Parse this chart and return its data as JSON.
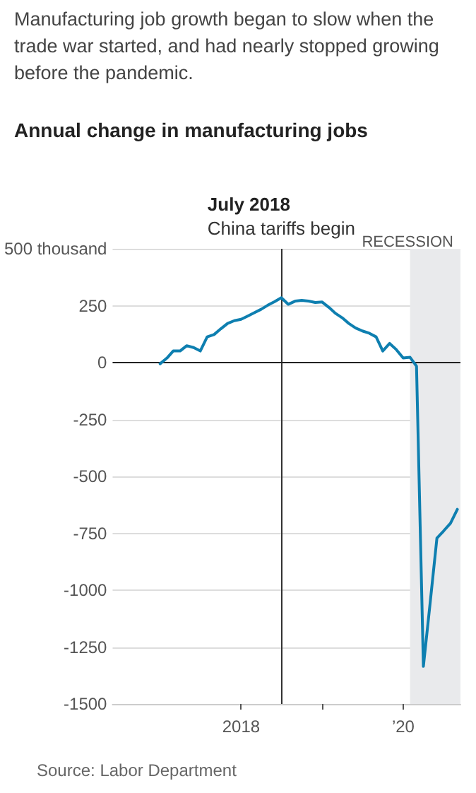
{
  "chart_data": {
    "type": "line",
    "subtitle": "Manufacturing job growth began to slow when the trade war started, and had nearly stopped growing before the pandemic.",
    "title": "Annual change in manufacturing jobs",
    "x": [
      "2017-01",
      "2017-02",
      "2017-03",
      "2017-04",
      "2017-05",
      "2017-06",
      "2017-07",
      "2017-08",
      "2017-09",
      "2017-10",
      "2017-11",
      "2017-12",
      "2018-01",
      "2018-02",
      "2018-03",
      "2018-04",
      "2018-05",
      "2018-06",
      "2018-07",
      "2018-08",
      "2018-09",
      "2018-10",
      "2018-11",
      "2018-12",
      "2019-01",
      "2019-02",
      "2019-03",
      "2019-04",
      "2019-05",
      "2019-06",
      "2019-07",
      "2019-08",
      "2019-09",
      "2019-10",
      "2019-11",
      "2019-12",
      "2020-01",
      "2020-02",
      "2020-03",
      "2020-04",
      "2020-05",
      "2020-06",
      "2020-07",
      "2020-08",
      "2020-09"
    ],
    "series": [
      {
        "color": "#0e7fb0",
        "values": [
          -5,
          20,
          51,
          51,
          74,
          66,
          51,
          113,
          123,
          148,
          172,
          184,
          190,
          205,
          219,
          234,
          252,
          268,
          285,
          256,
          270,
          273,
          270,
          264,
          266,
          242,
          217,
          197,
          172,
          152,
          139,
          129,
          113,
          51,
          84,
          57,
          20,
          23,
          -16,
          -1335,
          -1060,
          -771,
          -740,
          -706,
          -645
        ]
      }
    ],
    "xlim": [
      "2016-06-01",
      "2020-09-15"
    ],
    "xticks": [
      {
        "value": "2018-01-01",
        "label": "2018"
      },
      {
        "value": "2019-01-01",
        "label": null
      },
      {
        "value": "2020-01-01",
        "label": "’20"
      }
    ],
    "ylim": [
      -1500,
      500
    ],
    "yticks": [
      {
        "value": 500,
        "label": "500 thousand"
      },
      250,
      0,
      -250,
      -500,
      -750,
      -1000,
      -1250,
      -1500
    ],
    "grid": "y",
    "marker": "none",
    "line_style": "solid",
    "ref_lines": [
      {
        "axis": "x",
        "value": "2018-07-01",
        "label": "July 2018\nChina tariffs begin",
        "color": "#333333"
      },
      {
        "axis": "y",
        "value": 0,
        "color": "#222222"
      }
    ],
    "bands": [
      {
        "axis": "x",
        "from": "2020-02-01",
        "to": "2020-09-15",
        "label": "RECESSION",
        "color": "#e9eaec"
      }
    ],
    "annotations": [
      "Source: Labor Department"
    ]
  }
}
